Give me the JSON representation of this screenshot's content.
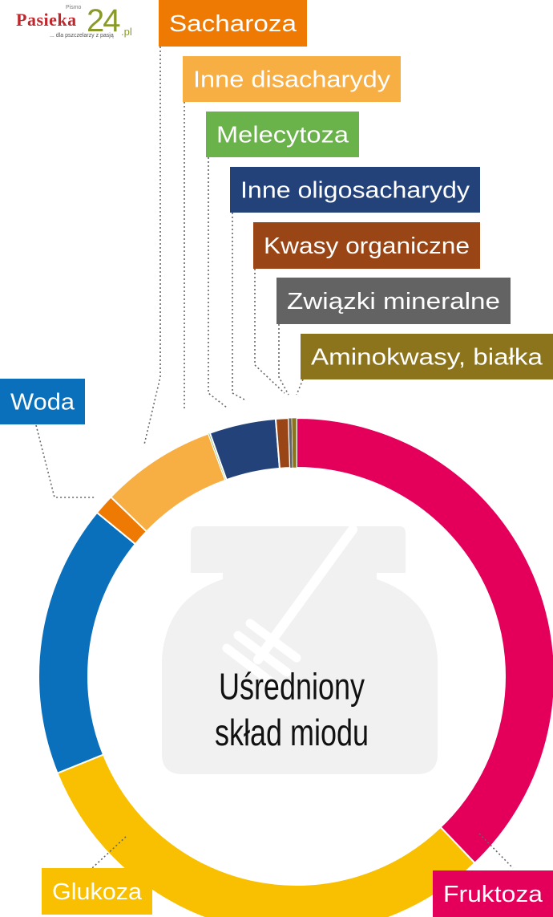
{
  "logo": {
    "small_text": "Pismo",
    "name": "Pasieka",
    "number": "24",
    "domain_suffix": ".pl",
    "tagline": "... dla pszczelarzy z pasją"
  },
  "chart_data": {
    "type": "pie",
    "center_label_line1": "Uśredniony",
    "center_label_line2": "skład miodu",
    "unit": "%",
    "slices": [
      {
        "label": "Fruktoza",
        "value": 38.2,
        "color": "#e4005a"
      },
      {
        "label": "Glukoza",
        "value": 31.3,
        "color": "#f8c000"
      },
      {
        "label": "Woda",
        "value": 17.2,
        "color": "#0a70bc"
      },
      {
        "label": "Sacharoza",
        "value": 1.3,
        "color": "#ee7a04"
      },
      {
        "label": "Inne disacharydy",
        "value": 7.3,
        "color": "#f7ae43"
      },
      {
        "label": "Melecytoza",
        "value": 0.1,
        "color": "#6ab24a"
      },
      {
        "label": "Inne oligosacharydy",
        "value": 4.2,
        "color": "#24427a"
      },
      {
        "label": "Kwasy organiczne",
        "value": 0.8,
        "color": "#9a4515"
      },
      {
        "label": "Związki mineralne",
        "value": 0.2,
        "color": "#636363"
      },
      {
        "label": "Aminokwasy, białka",
        "value": 0.3,
        "color": "#8c741c"
      }
    ]
  }
}
